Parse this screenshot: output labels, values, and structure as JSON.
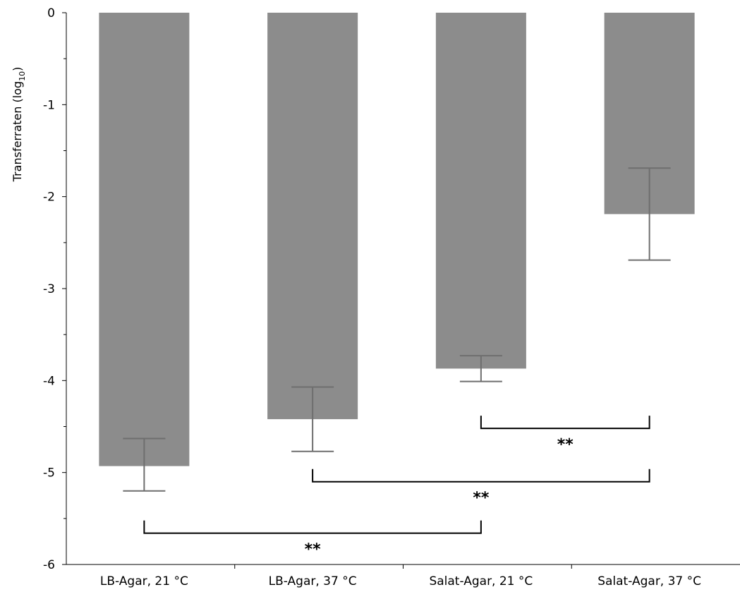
{
  "chart_data": {
    "type": "bar",
    "title": "",
    "xlabel": "",
    "ylabel": "Transferraten (log",
    "ylabel_sub": "10",
    "ylabel_end": ")",
    "ylim": [
      -6,
      0
    ],
    "yticks": [
      0,
      -1,
      -2,
      -3,
      -4,
      -5,
      -6
    ],
    "ytick_labels": [
      "0",
      "-1",
      "-2",
      "-3",
      "-4",
      "-5",
      "-6"
    ],
    "grid": false,
    "categories": [
      "LB-Agar, 21 °C",
      "LB-Agar, 37 °C",
      "Salat-Agar, 21 °C",
      "Salat-Agar, 37 °C"
    ],
    "values": [
      -4.93,
      -4.42,
      -3.87,
      -2.19
    ],
    "error": [
      {
        "low": -5.2,
        "high": -4.63
      },
      {
        "low": -4.77,
        "high": -4.07
      },
      {
        "low": -4.01,
        "high": -3.73
      },
      {
        "low": -2.69,
        "high": -1.69
      }
    ],
    "bar_color": "#8c8c8c",
    "error_color": "#6e6e6e",
    "significance": [
      {
        "from": 2,
        "to": 3,
        "y": -4.52,
        "label": "**"
      },
      {
        "from": 1,
        "to": 3,
        "y": -5.1,
        "label": "**"
      },
      {
        "from": 0,
        "to": 2,
        "y": -5.66,
        "label": "**"
      }
    ]
  }
}
